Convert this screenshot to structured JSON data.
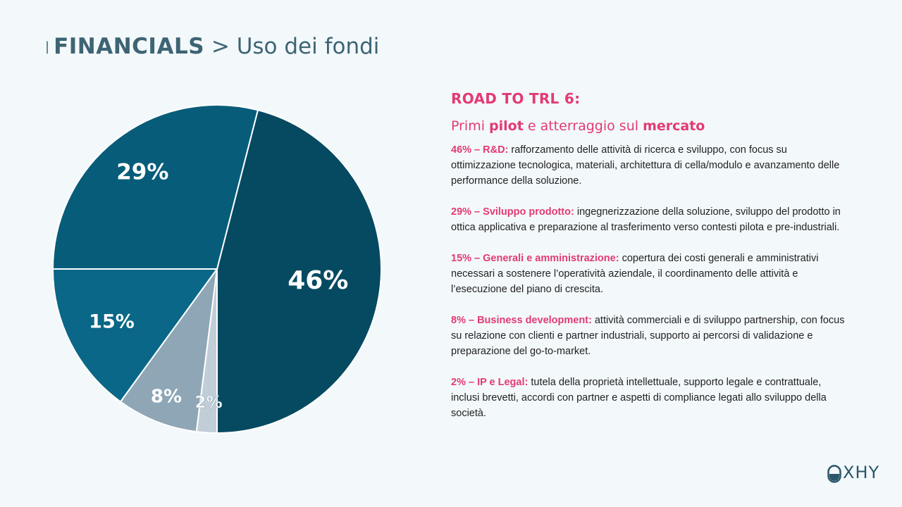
{
  "header": {
    "separator": "|",
    "title_strong": "FINANCIALS",
    "title_rest": "> Uso dei fondi"
  },
  "chart_data": {
    "type": "pie",
    "categories": [
      "R&D",
      "Sviluppo prodotto",
      "Generali e amministrazione",
      "Business development",
      "IP e Legal"
    ],
    "values": [
      46,
      29,
      15,
      8,
      2
    ],
    "labels": [
      "46%",
      "29%",
      "15%",
      "8%",
      "2%"
    ],
    "colors": [
      "#064a61",
      "#075c7a",
      "#0a6787",
      "#8ea6b5",
      "#c1ced8"
    ]
  },
  "panel": {
    "heading": "ROAD TO TRL 6:",
    "subtitle": {
      "p1": "Primi ",
      "b1": "pilot",
      "p2": " e atterraggio sul ",
      "b2": "mercato"
    },
    "items": [
      {
        "label": "46% – R&D:",
        "text": " rafforzamento delle attività di ricerca e sviluppo, con focus su ottimizzazione tecnologica, materiali, architettura di cella/modulo e avanzamento delle performance della soluzione."
      },
      {
        "label": "29% – Sviluppo prodotto:",
        "text": " ingegnerizzazione della soluzione, sviluppo del prodotto in ottica applicativa e preparazione al trasferimento verso contesti pilota e pre-industriali."
      },
      {
        "label": "15% – Generali e amministrazione:",
        "text": " copertura dei costi generali e amministrativi necessari a sostenere l’operatività aziendale, il coordinamento delle attività e l’esecuzione del piano di crescita."
      },
      {
        "label": "8% – Business development:",
        "text": " attività commerciali e di sviluppo partnership, con focus su relazione con clienti e partner industriali, supporto ai percorsi di validazione e preparazione del go-to-market."
      },
      {
        "label": "2% – IP e Legal:",
        "text": " tutela della proprietà intellettuale, supporto legale e contrattuale, inclusi brevetti, accordi con partner e aspetti di compliance legati allo sviluppo della società."
      }
    ]
  },
  "logo": {
    "text": "XHY",
    "icon": "capsule-o-icon",
    "color": "#2a5868"
  }
}
